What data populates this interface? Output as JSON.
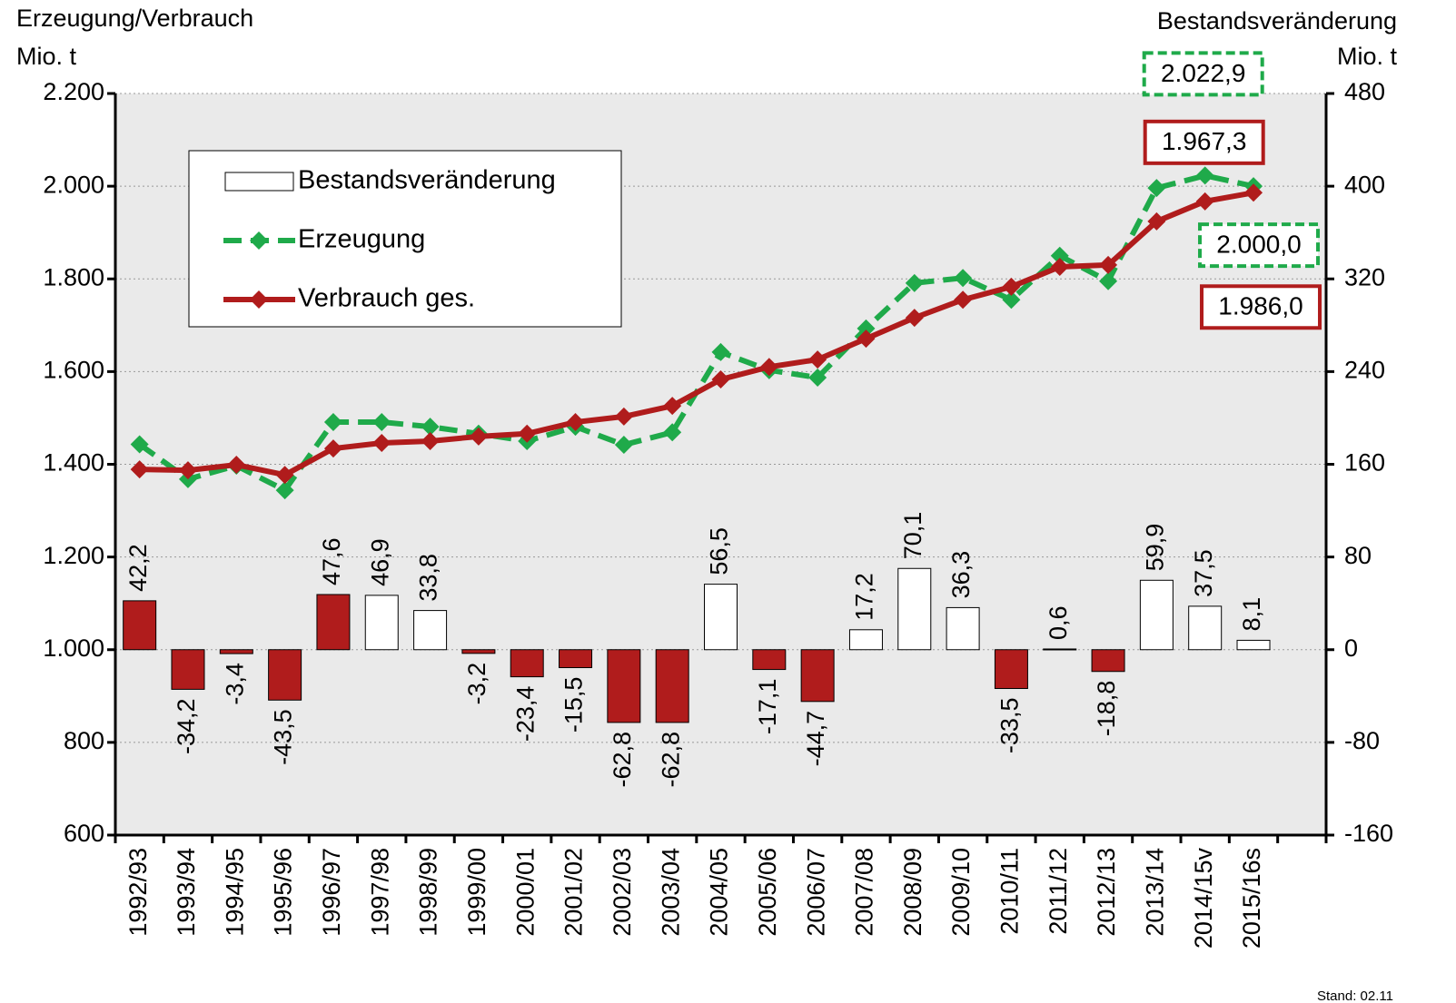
{
  "chart_data": {
    "type": "bar-line",
    "y_title": [
      "Erzeugung/Verbrauch",
      "Mio. t"
    ],
    "y2_title": [
      "Bestandsveränderung",
      "Mio. t"
    ],
    "note": "Stand: 02.11",
    "categories": [
      "1992/93",
      "1993/94",
      "1994/95",
      "1995/96",
      "1996/97",
      "1997/98",
      "1998/99",
      "1999/00",
      "2000/01",
      "2001/02",
      "2002/03",
      "2003/04",
      "2004/05",
      "2005/06",
      "2006/07",
      "2007/08",
      "2008/09",
      "2009/10",
      "2010/11",
      "2011/12",
      "2012/13",
      "2013/14",
      "2014/15v",
      "2015/16s",
      null
    ],
    "ylim": [
      600,
      2200
    ],
    "yticks": [
      {
        "value": 600,
        "label": "600"
      },
      {
        "value": 800,
        "label": "800"
      },
      {
        "value": 1000,
        "label": "1.000"
      },
      {
        "value": 1200,
        "label": "1.200"
      },
      {
        "value": 1400,
        "label": "1.400"
      },
      {
        "value": 1600,
        "label": "1.600"
      },
      {
        "value": 1800,
        "label": "1.800"
      },
      {
        "value": 2000,
        "label": "2.000"
      },
      {
        "value": 2200,
        "label": "2.200"
      }
    ],
    "y2lim": [
      -160,
      480
    ],
    "y2ticks": [
      -160,
      -80,
      0,
      80,
      160,
      240,
      320,
      400,
      480
    ],
    "grid": true,
    "legend": "upper left",
    "background": "#eaeaea",
    "series": [
      {
        "name": "Bestandsveränderung",
        "type": "bar",
        "axis": "y2",
        "values": [
          42.2,
          -34.2,
          -3.4,
          -43.5,
          47.6,
          46.9,
          33.8,
          -3.2,
          -23.4,
          -15.5,
          -62.8,
          -62.8,
          56.5,
          -17.1,
          -44.7,
          17.2,
          70.1,
          36.3,
          -33.5,
          0.6,
          -18.8,
          59.9,
          37.5,
          8.1,
          null
        ],
        "value_labels": [
          "42,2",
          "-34,2",
          "-3,4",
          "-43,5",
          "47,6",
          "46,9",
          "33,8",
          "-3,2",
          "-23,4",
          "-15,5",
          "-62,8",
          "-62,8",
          "56,5",
          "-17,1",
          "-44,7",
          "17,2",
          "70,1",
          "36,3",
          "-33,5",
          "0,6",
          "-18,8",
          "59,9",
          "37,5",
          "8,1",
          null
        ],
        "colors": [
          "#b01c1c",
          "#b01c1c",
          "#b01c1c",
          "#b01c1c",
          "#b01c1c",
          "#ffffff",
          "#ffffff",
          "#b01c1c",
          "#b01c1c",
          "#b01c1c",
          "#b01c1c",
          "#b01c1c",
          "#ffffff",
          "#b01c1c",
          "#b01c1c",
          "#ffffff",
          "#ffffff",
          "#ffffff",
          "#b01c1c",
          "#ffffff",
          "#b01c1c",
          "#ffffff",
          "#ffffff",
          "#ffffff",
          null
        ]
      },
      {
        "name": "Erzeugung",
        "type": "line",
        "color": "#1faa4a",
        "dashed": true,
        "values": [
          1443,
          1368,
          1397,
          1344,
          1491,
          1491,
          1481,
          1466,
          1450,
          1481,
          1442,
          1469,
          1642,
          1603,
          1587,
          1693,
          1791,
          1802,
          1755,
          1850,
          1795,
          1996,
          2022.9,
          2000.0,
          null
        ],
        "value_labels": [
          null,
          null,
          null,
          null,
          null,
          null,
          null,
          null,
          null,
          null,
          null,
          null,
          null,
          null,
          null,
          null,
          null,
          null,
          null,
          null,
          null,
          null,
          "2.022,9",
          "2.000,0",
          null
        ]
      },
      {
        "name": "Verbrauch ges.",
        "type": "line",
        "color": "#b01c1c",
        "dashed": false,
        "values": [
          1389,
          1387,
          1399,
          1377,
          1434,
          1446,
          1450,
          1460,
          1466,
          1491,
          1503,
          1526,
          1583,
          1610,
          1626,
          1671,
          1716,
          1755,
          1783,
          1826,
          1830,
          1924,
          1967.3,
          1986.0,
          null
        ],
        "value_labels": [
          null,
          null,
          null,
          null,
          null,
          null,
          null,
          null,
          null,
          null,
          null,
          null,
          null,
          null,
          null,
          null,
          null,
          null,
          null,
          null,
          null,
          null,
          "1.967,3",
          "1.986,0",
          null
        ]
      }
    ]
  }
}
